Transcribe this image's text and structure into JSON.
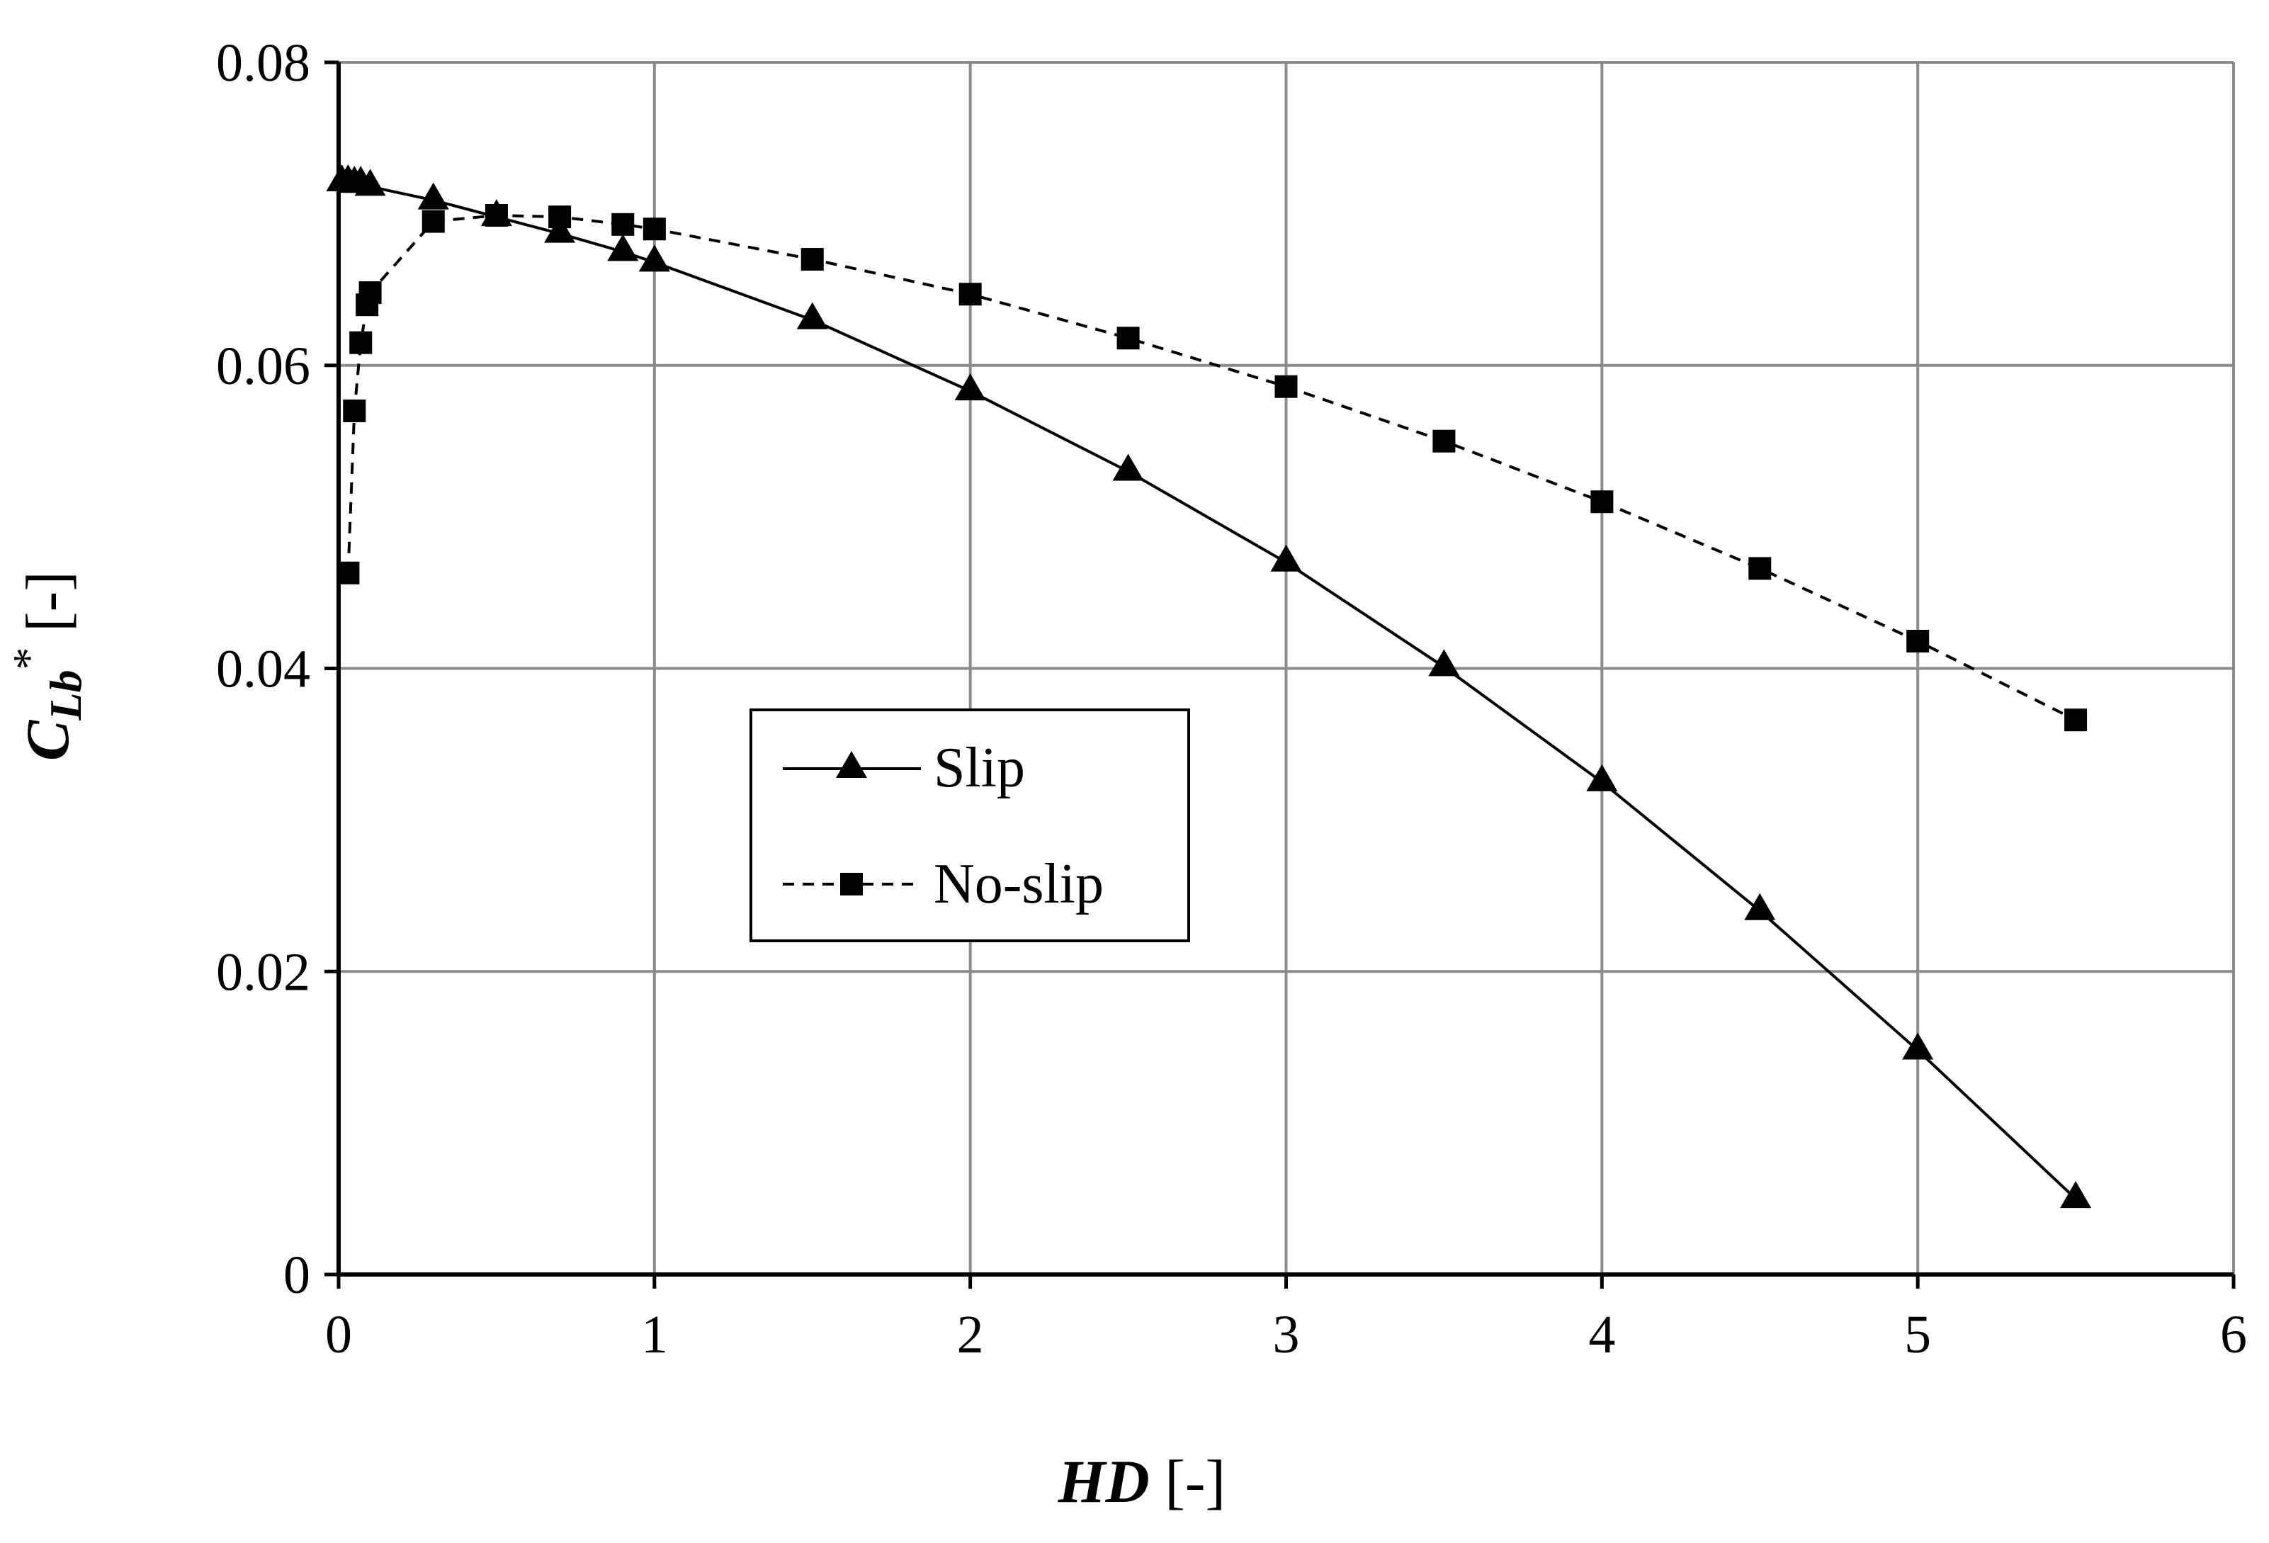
{
  "chart_data": {
    "type": "line",
    "xlabel": {
      "main": "HD",
      "unit": " [-]"
    },
    "ylabel": {
      "main": "C",
      "sub": "Lb",
      "sup": "*",
      "unit": " [-]"
    },
    "xlim": [
      0,
      6
    ],
    "ylim": [
      0,
      0.08
    ],
    "xticks": [
      0,
      1,
      2,
      3,
      4,
      5,
      6
    ],
    "yticks": [
      0,
      0.02,
      0.04,
      0.06,
      0.08
    ],
    "xtick_labels": [
      "0",
      "1",
      "2",
      "3",
      "4",
      "5",
      "6"
    ],
    "ytick_labels": [
      "0",
      "0.02",
      "0.04",
      "0.06",
      "0.08"
    ],
    "grid": true,
    "legend": {
      "placement": "center-left"
    },
    "series": [
      {
        "name": "Slip",
        "style": "solid",
        "marker": "triangle",
        "color": "#000000",
        "x": [
          0.01,
          0.03,
          0.05,
          0.07,
          0.1,
          0.3,
          0.5,
          0.7,
          0.9,
          1.0,
          1.5,
          2.0,
          2.5,
          3.0,
          3.5,
          4.0,
          4.5,
          5.0,
          5.5
        ],
        "y": [
          0.0721,
          0.0721,
          0.072,
          0.072,
          0.0718,
          0.0709,
          0.0698,
          0.0687,
          0.0675,
          0.0668,
          0.063,
          0.0583,
          0.053,
          0.047,
          0.0401,
          0.0325,
          0.024,
          0.0148,
          0.005
        ]
      },
      {
        "name": "No-slip",
        "style": "dashed",
        "marker": "square",
        "color": "#000000",
        "x": [
          0.03,
          0.05,
          0.07,
          0.09,
          0.1,
          0.3,
          0.5,
          0.7,
          0.9,
          1.0,
          1.5,
          2.0,
          2.5,
          3.0,
          3.5,
          4.0,
          4.5,
          5.0,
          5.5
        ],
        "y": [
          0.0463,
          0.057,
          0.0615,
          0.064,
          0.0648,
          0.0695,
          0.0699,
          0.0698,
          0.0693,
          0.069,
          0.067,
          0.0647,
          0.0618,
          0.0586,
          0.055,
          0.051,
          0.0466,
          0.0418,
          0.0366
        ]
      }
    ]
  },
  "colors": {
    "grid": "#8c8c8c",
    "axis": "#000000",
    "background": "#ffffff"
  }
}
